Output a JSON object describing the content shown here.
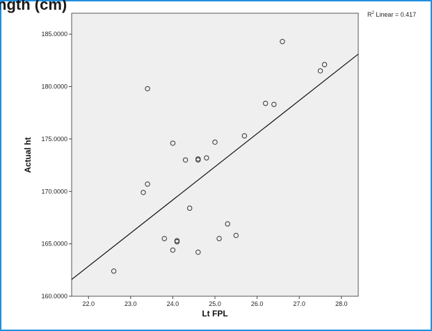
{
  "header": {
    "title_fragment": "ngth (cm)"
  },
  "chart_data": {
    "type": "scatter",
    "title": "",
    "xlabel": "Lt FPL",
    "ylabel": "Actual ht",
    "xlim": [
      21.6,
      28.4
    ],
    "ylim": [
      160.0,
      187.0
    ],
    "x_ticks": [
      22.0,
      23.0,
      24.0,
      25.0,
      26.0,
      27.0,
      28.0
    ],
    "x_tick_labels": [
      "22.0",
      "23.0",
      "24.0",
      "25.0",
      "26.0",
      "27.0",
      "28.0"
    ],
    "y_ticks": [
      160,
      165,
      170,
      175,
      180,
      185
    ],
    "y_tick_labels": [
      "160.0000",
      "165.0000",
      "170.0000",
      "175.0000",
      "180.0000",
      "185.0000"
    ],
    "grid": false,
    "points": [
      {
        "x": 22.6,
        "y": 162.4
      },
      {
        "x": 23.3,
        "y": 169.9
      },
      {
        "x": 23.4,
        "y": 170.7
      },
      {
        "x": 23.4,
        "y": 179.8
      },
      {
        "x": 23.8,
        "y": 165.5
      },
      {
        "x": 24.0,
        "y": 174.6
      },
      {
        "x": 24.0,
        "y": 164.4
      },
      {
        "x": 24.1,
        "y": 165.3
      },
      {
        "x": 24.1,
        "y": 165.2
      },
      {
        "x": 24.3,
        "y": 173.0
      },
      {
        "x": 24.4,
        "y": 168.4
      },
      {
        "x": 24.6,
        "y": 173.1
      },
      {
        "x": 24.6,
        "y": 173.0
      },
      {
        "x": 24.6,
        "y": 164.2
      },
      {
        "x": 24.8,
        "y": 173.2
      },
      {
        "x": 25.0,
        "y": 174.7
      },
      {
        "x": 25.1,
        "y": 165.5
      },
      {
        "x": 25.3,
        "y": 166.9
      },
      {
        "x": 25.5,
        "y": 165.8
      },
      {
        "x": 25.7,
        "y": 175.3
      },
      {
        "x": 26.2,
        "y": 178.4
      },
      {
        "x": 26.4,
        "y": 178.3
      },
      {
        "x": 26.6,
        "y": 184.3
      },
      {
        "x": 27.5,
        "y": 181.5
      },
      {
        "x": 27.6,
        "y": 182.1
      }
    ],
    "fit_line": {
      "label_prefix": "R",
      "label_sup": "2",
      "label_suffix": " Linear = 0.417",
      "x": [
        21.6,
        28.4
      ],
      "y": [
        161.6,
        183.1
      ]
    },
    "colors": {
      "plot_background": "#efefef",
      "marker_stroke": "#333333",
      "line": "#111111",
      "frame_border": "#1f8fe0"
    }
  }
}
